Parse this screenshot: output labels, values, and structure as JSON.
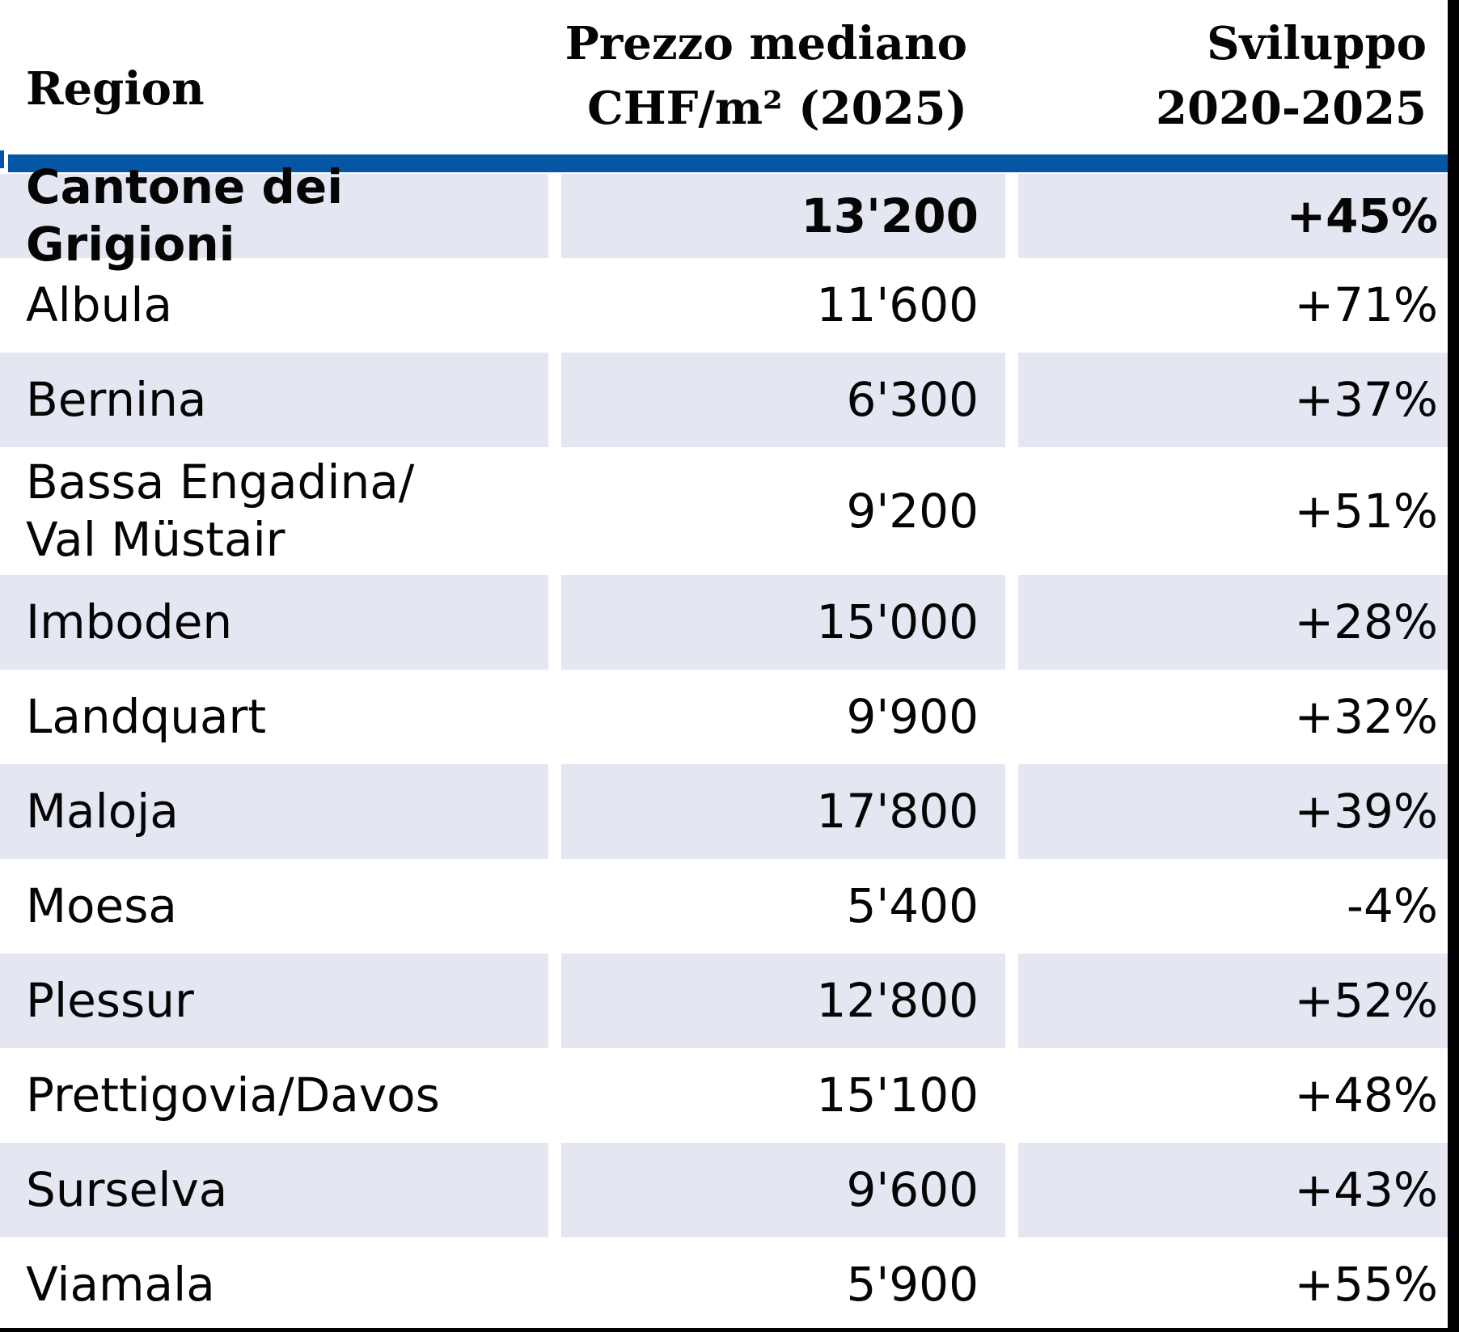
{
  "colors": {
    "accent_blue": "#0557a5",
    "row_shade": "#e4e7f1",
    "border_black": "#000000",
    "text": "#050505"
  },
  "header": {
    "col1": "Region",
    "col2_line1": "Prezzo mediano",
    "col2_line2": "CHF/m² (2025)",
    "col3_line1": "Sviluppo",
    "col3_line2": "2020-2025"
  },
  "table": {
    "rows": [
      {
        "region": "Cantone dei Grigioni",
        "price": "13'200",
        "change": "+45%",
        "bold": true
      },
      {
        "region": "Albula",
        "price": "11'600",
        "change": "+71%"
      },
      {
        "region": "Bernina",
        "price": "6'300",
        "change": "+37%"
      },
      {
        "region": "Bassa Engadina/\nVal Müstair",
        "price": "9'200",
        "change": "+51%"
      },
      {
        "region": "Imboden",
        "price": "15'000",
        "change": "+28%"
      },
      {
        "region": "Landquart",
        "price": "9'900",
        "change": "+32%"
      },
      {
        "region": "Maloja",
        "price": "17'800",
        "change": "+39%"
      },
      {
        "region": "Moesa",
        "price": "5'400",
        "change": "-4%"
      },
      {
        "region": "Plessur",
        "price": "12'800",
        "change": "+52%"
      },
      {
        "region": "Prettigovia/Davos",
        "price": "15'100",
        "change": "+48%"
      },
      {
        "region": "Surselva",
        "price": "9'600",
        "change": "+43%"
      },
      {
        "region": "Viamala",
        "price": "5'900",
        "change": "+55%"
      }
    ]
  },
  "chart_data": {
    "type": "table",
    "columns": [
      "Region",
      "Prezzo mediano CHF/m² (2025)",
      "Sviluppo 2020-2025"
    ],
    "regions": [
      "Cantone dei Grigioni",
      "Albula",
      "Bernina",
      "Bassa Engadina/Val Müstair",
      "Imboden",
      "Landquart",
      "Maloja",
      "Moesa",
      "Plessur",
      "Prettigovia/Davos",
      "Surselva",
      "Viamala"
    ],
    "median_price_chf_m2_2025": [
      13200,
      11600,
      6300,
      9200,
      15000,
      9900,
      17800,
      5400,
      12800,
      15100,
      9600,
      5900
    ],
    "development_2020_2025_pct": [
      45,
      71,
      37,
      51,
      28,
      32,
      39,
      -4,
      52,
      48,
      43,
      55
    ],
    "notes": "First row (Cantone dei Grigioni) is the cantonal aggregate, shown bold; alternating rows shaded light blue-grey"
  }
}
